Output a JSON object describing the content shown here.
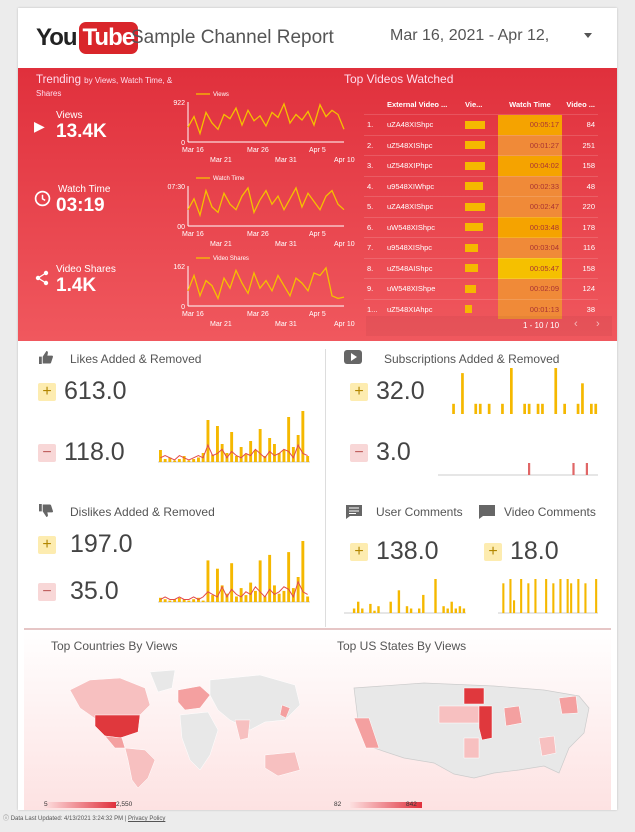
{
  "header": {
    "logo_you": "You",
    "logo_tube": "Tube",
    "title": "Sample Channel Report",
    "date_range": "Mar 16, 2021 - Apr 12,"
  },
  "trending": {
    "title": "Trending",
    "subtitle": "by Views, Watch Time, & Shares",
    "metrics": [
      {
        "label": "Views",
        "value": "13.4K",
        "icon": "play-icon"
      },
      {
        "label": "Watch Time",
        "value": "03:19",
        "icon": "clock-icon"
      },
      {
        "label": "Video Shares",
        "value": "1.4K",
        "icon": "share-icon"
      }
    ],
    "sparklines": [
      {
        "legend": "Views",
        "ymax": "922",
        "ymin": "0",
        "xticks_top": [
          "Mar 16",
          "Mar 26",
          "Apr 5"
        ],
        "xticks_bottom": [
          "Mar 21",
          "Mar 31",
          "Apr 10"
        ],
        "values": [
          350,
          600,
          200,
          700,
          450,
          300,
          650,
          550,
          800,
          400,
          750,
          500,
          620,
          380,
          700,
          580,
          900,
          450,
          650,
          520,
          720,
          400,
          880,
          600,
          750,
          650,
          300
        ]
      },
      {
        "legend": "Watch Time",
        "ymax": "07:30",
        "ymin": "00",
        "xticks_top": [
          "Mar 16",
          "Mar 26",
          "Apr 5"
        ],
        "xticks_bottom": [
          "Mar 21",
          "Mar 31",
          "Apr 10"
        ],
        "values": [
          300,
          500,
          200,
          650,
          350,
          250,
          600,
          400,
          300,
          550,
          700,
          250,
          480,
          650,
          400,
          550,
          300,
          500,
          700,
          350,
          600,
          450,
          300,
          550,
          650,
          400,
          300
        ]
      },
      {
        "legend": "Video Shares",
        "ymax": "162",
        "ymin": "0",
        "xticks_top": [
          "Mar 16",
          "Mar 26",
          "Apr 5"
        ],
        "xticks_bottom": [
          "Mar 21",
          "Mar 31",
          "Apr 10"
        ],
        "values": [
          60,
          120,
          40,
          100,
          80,
          30,
          110,
          70,
          140,
          90,
          50,
          130,
          70,
          100,
          60,
          120,
          80,
          40,
          110,
          90,
          60,
          130,
          120,
          150,
          40,
          30,
          35
        ]
      }
    ]
  },
  "top_videos": {
    "title": "Top Videos Watched",
    "columns": [
      "External Video ...",
      "Vie...",
      "Watch Time",
      "Video ..."
    ],
    "rows": [
      {
        "rank": "1.",
        "id": "uZA48XIShpc",
        "views": 0.9,
        "watch": "00:05:17",
        "count": "84"
      },
      {
        "rank": "2.",
        "id": "uZ548XIShpc",
        "views": 0.9,
        "watch": "00:01:27",
        "count": "251"
      },
      {
        "rank": "3.",
        "id": "uZ548XIPhpc",
        "views": 0.9,
        "watch": "00:04:02",
        "count": "158"
      },
      {
        "rank": "4.",
        "id": "u9548XIWhpc",
        "views": 0.8,
        "watch": "00:02:33",
        "count": "48"
      },
      {
        "rank": "5.",
        "id": "uZA48XIShpc",
        "views": 0.9,
        "watch": "00:02:47",
        "count": "220"
      },
      {
        "rank": "6.",
        "id": "uW548XIShpc",
        "views": 0.8,
        "watch": "00:03:48",
        "count": "178"
      },
      {
        "rank": "7.",
        "id": "u9548XIShpc",
        "views": 0.6,
        "watch": "00:03:04",
        "count": "116"
      },
      {
        "rank": "8.",
        "id": "uZ548AIShpc",
        "views": 0.6,
        "watch": "00:05:47",
        "count": "158"
      },
      {
        "rank": "9.",
        "id": "uW548XIShpe",
        "views": 0.5,
        "watch": "00:02:09",
        "count": "124"
      },
      {
        "rank": "1...",
        "id": "uZ548XIAhpc",
        "views": 0.3,
        "watch": "00:01:13",
        "count": "38"
      }
    ],
    "pagination": "1 - 10 / 10"
  },
  "likes": {
    "title": "Likes Added & Removed",
    "added": "613.0",
    "removed": "118.0",
    "bars": [
      8,
      2,
      3,
      1,
      2,
      4,
      1,
      2,
      3,
      6,
      28,
      5,
      24,
      12,
      6,
      20,
      4,
      10,
      5,
      14,
      8,
      22,
      4,
      16,
      12,
      6,
      8,
      30,
      10,
      18,
      34,
      4
    ],
    "line": [
      2,
      3,
      2,
      1,
      3,
      2,
      1,
      2,
      3,
      2,
      8,
      3,
      4,
      6,
      2,
      5,
      3,
      2,
      4,
      3,
      6,
      4,
      2,
      5,
      3,
      4,
      6,
      5,
      2,
      8,
      4,
      3
    ]
  },
  "dislikes": {
    "title": "Dislikes Added & Removed",
    "added": "197.0",
    "removed": "35.0",
    "bars": [
      3,
      2,
      1,
      2,
      3,
      2,
      1,
      2,
      3,
      1,
      30,
      5,
      24,
      12,
      6,
      28,
      4,
      10,
      5,
      14,
      8,
      30,
      4,
      34,
      12,
      6,
      8,
      36,
      10,
      18,
      44,
      4
    ],
    "line": [
      1,
      2,
      1,
      1,
      2,
      1,
      1,
      2,
      1,
      2,
      4,
      3,
      2,
      6,
      2,
      5,
      3,
      2,
      4,
      3,
      6,
      4,
      2,
      5,
      3,
      4,
      6,
      5,
      2,
      8,
      4,
      3
    ]
  },
  "subscriptions": {
    "title": "Subscriptions Added & Removed",
    "added": "32.0",
    "removed": "3.0",
    "bars_added": [
      0,
      0,
      0,
      10,
      0,
      40,
      0,
      0,
      10,
      10,
      0,
      10,
      0,
      0,
      10,
      0,
      45,
      0,
      0,
      10,
      10,
      0,
      10,
      10,
      0,
      0,
      45,
      0,
      10,
      0,
      0,
      10,
      30,
      0,
      10,
      10
    ],
    "bars_removed": [
      0,
      0,
      0,
      0,
      0,
      0,
      0,
      0,
      0,
      0,
      0,
      0,
      0,
      0,
      0,
      0,
      0,
      0,
      0,
      0,
      1,
      0,
      0,
      0,
      0,
      0,
      0,
      0,
      0,
      0,
      1,
      0,
      0,
      1,
      0,
      0
    ]
  },
  "user_comments": {
    "title": "User Comments",
    "value": "138.0",
    "bars": [
      0,
      0,
      4,
      10,
      4,
      0,
      8,
      2,
      6,
      0,
      0,
      10,
      0,
      20,
      0,
      6,
      4,
      0,
      4,
      16,
      0,
      0,
      30,
      0,
      6,
      4,
      10,
      4,
      6,
      4
    ]
  },
  "video_comments": {
    "title": "Video Comments",
    "value": "18.0",
    "bars": [
      0,
      14,
      0,
      16,
      6,
      0,
      16,
      0,
      14,
      0,
      16,
      0,
      0,
      16,
      0,
      14,
      0,
      16,
      0,
      16,
      14,
      0,
      16,
      0,
      14,
      0,
      0,
      16
    ]
  },
  "maps": {
    "countries": {
      "title": "Top Countries By Views",
      "min": "5",
      "max": "2,550"
    },
    "states": {
      "title": "Top US States By Views",
      "min": "82",
      "max": "842"
    }
  },
  "footer": {
    "updated": "Data Last Updated: 4/13/2021 3:24:32 PM",
    "sep": "|",
    "privacy": "Privacy Policy"
  },
  "colors": {
    "accent": "#e0303c",
    "bar": "#f5b800",
    "line": "#e24b4b"
  }
}
